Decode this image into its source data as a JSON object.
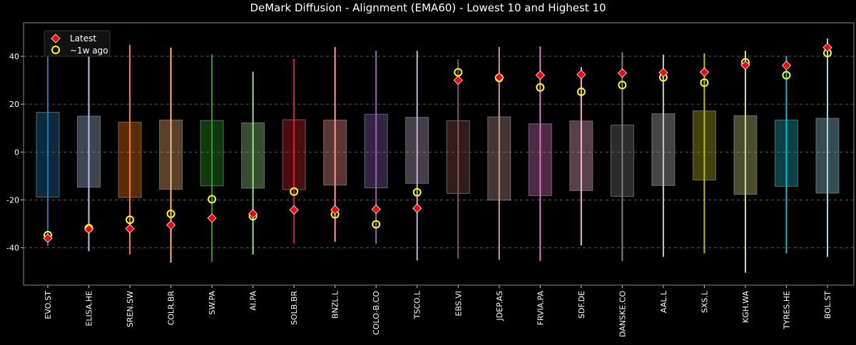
{
  "chart_data": {
    "type": "box",
    "title": "DeMark Diffusion - Alignment (EMA60) - Lowest 10 and Highest 10",
    "xlabel": "",
    "ylabel": "",
    "ylim": [
      -55.6,
      54
    ],
    "yticks": [
      -40,
      -20,
      0,
      20,
      40
    ],
    "grid": "horizontal dashed",
    "legend": {
      "position": "top-left",
      "entries": [
        "Latest",
        "~1w ago"
      ]
    },
    "marker_colors": {
      "latest": "#ff0000",
      "week_ago": "#ffff00"
    },
    "categories": [
      "EVO.ST",
      "ELISA.HE",
      "SREN.SW",
      "COLR.BR",
      "SW.PA",
      "AI.PA",
      "SOLB.BR",
      "BNZL.L",
      "COLO-B.CO",
      "TSCO.L",
      "EBS.VI",
      "JDEP.AS",
      "FRVIA.PA",
      "SDF.DE",
      "DANSKE.CO",
      "AAL.L",
      "SXS.L",
      "KGH.WA",
      "TYRES.HE",
      "BOL.ST"
    ],
    "colors": [
      "#1f77b4",
      "#aec7e8",
      "#ff7f0e",
      "#ffbb78",
      "#2ca02c",
      "#98df8a",
      "#d62728",
      "#ff9896",
      "#9467bd",
      "#c5b0d5",
      "#8c564b",
      "#c49c94",
      "#e377c2",
      "#f7b6d2",
      "#7f7f7f",
      "#c7c7c7",
      "#bcbd22",
      "#dbdb8d",
      "#17becf",
      "#9edae5"
    ],
    "whisker_high": [
      49.2,
      43.3,
      44.8,
      43.6,
      40.8,
      33.6,
      39.1,
      43.9,
      42.3,
      42.3,
      38.7,
      43.9,
      44.1,
      35.5,
      41.7,
      40.7,
      41.2,
      42.3,
      40.2,
      47.5
    ],
    "whisker_low": [
      -39.3,
      -41.4,
      -42.8,
      -46.2,
      -45.8,
      -42.8,
      -38.3,
      -37.5,
      -38.3,
      -45.3,
      -44.5,
      -45.0,
      -45.5,
      -39.0,
      -45.5,
      -43.8,
      -42.3,
      -50.4,
      -42.3,
      -43.8
    ],
    "box_high": [
      16.6,
      15.0,
      12.5,
      13.4,
      13.2,
      12.2,
      13.5,
      13.4,
      15.8,
      14.5,
      13.1,
      14.7,
      11.8,
      13.0,
      11.3,
      16.0,
      17.2,
      15.2,
      13.4,
      14.1
    ],
    "box_low": [
      -18.8,
      -14.7,
      -19.0,
      -15.6,
      -14.1,
      -15.1,
      -15.7,
      -13.8,
      -15.0,
      -13.1,
      -17.3,
      -20.1,
      -18.2,
      -16.1,
      -18.5,
      -14.0,
      -11.7,
      -17.7,
      -14.3,
      -17.2
    ],
    "latest": [
      -36.0,
      -32.2,
      -32.0,
      -30.5,
      -27.6,
      -25.8,
      -24.2,
      -24.1,
      -23.9,
      -23.5,
      30.0,
      31.2,
      32.1,
      32.4,
      33.0,
      33.2,
      33.4,
      36.3,
      36.2,
      43.7
    ],
    "week_ago": [
      -34.7,
      -31.8,
      -28.3,
      -25.8,
      -19.7,
      -26.8,
      -16.5,
      -26.0,
      -30.2,
      -16.8,
      33.3,
      31.0,
      27.0,
      25.2,
      28.0,
      31.2,
      29.0,
      37.5,
      32.1,
      41.4
    ]
  }
}
